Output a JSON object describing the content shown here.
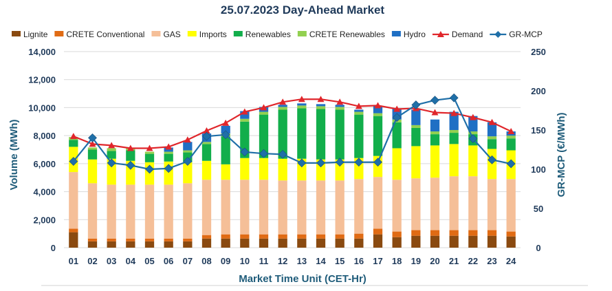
{
  "chart_data": {
    "type": "bar",
    "title": "25.07.2023  Day-Ahead Market",
    "xlabel": "Market Time Unit (CET-Hr)",
    "ylabel": "Volume (MWh)",
    "y2label": "GR-MCP (€/MWh)",
    "ylim": [
      0,
      14000
    ],
    "y2lim": [
      0,
      250
    ],
    "y_ticks": [
      "0",
      "2,000",
      "4,000",
      "6,000",
      "8,000",
      "10,000",
      "12,000",
      "14,000"
    ],
    "y2_ticks": [
      "0",
      "50",
      "100",
      "150",
      "200",
      "250"
    ],
    "categories": [
      "01",
      "02",
      "03",
      "04",
      "05",
      "06",
      "07",
      "08",
      "09",
      "10",
      "11",
      "12",
      "13",
      "14",
      "15",
      "16",
      "17",
      "18",
      "19",
      "20",
      "21",
      "22",
      "23",
      "24"
    ],
    "stacked_series": [
      {
        "name": "Lignite",
        "color": "#8a4a10",
        "values": [
          1100,
          450,
          450,
          450,
          450,
          450,
          450,
          650,
          650,
          650,
          650,
          650,
          650,
          650,
          650,
          650,
          950,
          750,
          850,
          850,
          850,
          850,
          850,
          800
        ]
      },
      {
        "name": "CRETE Conventional",
        "color": "#e06b14",
        "values": [
          250,
          200,
          200,
          200,
          200,
          200,
          200,
          250,
          300,
          300,
          300,
          300,
          300,
          300,
          300,
          350,
          400,
          400,
          400,
          400,
          400,
          400,
          400,
          350
        ]
      },
      {
        "name": "GAS",
        "color": "#f5bf98",
        "values": [
          4050,
          3950,
          3850,
          3850,
          3850,
          3850,
          3950,
          3950,
          3900,
          3900,
          3900,
          3850,
          3850,
          3850,
          3850,
          3900,
          3700,
          3700,
          3700,
          3750,
          3850,
          3850,
          3650,
          3750
        ]
      },
      {
        "name": "Imports",
        "color": "#ffff00",
        "values": [
          1800,
          1700,
          1850,
          1700,
          1600,
          1650,
          1500,
          1350,
          1100,
          1550,
          1550,
          1550,
          1550,
          1500,
          1500,
          1500,
          1500,
          2250,
          2300,
          2300,
          2300,
          2200,
          2150,
          2050
        ]
      },
      {
        "name": "Renewables",
        "color": "#12ae4b",
        "values": [
          500,
          700,
          550,
          750,
          600,
          550,
          700,
          1200,
          2000,
          2600,
          3100,
          3500,
          3600,
          3600,
          3550,
          3100,
          2850,
          1850,
          1300,
          800,
          800,
          800,
          700,
          850
        ]
      },
      {
        "name": "CRETE Renewables",
        "color": "#92d050",
        "values": [
          200,
          150,
          200,
          150,
          150,
          150,
          150,
          150,
          200,
          200,
          200,
          200,
          200,
          200,
          200,
          200,
          200,
          200,
          200,
          200,
          200,
          200,
          200,
          200
        ]
      },
      {
        "name": "Hydro",
        "color": "#1f6fc4",
        "values": [
          0,
          0,
          0,
          0,
          0,
          300,
          600,
          600,
          550,
          550,
          350,
          150,
          150,
          150,
          150,
          150,
          500,
          800,
          1100,
          850,
          1300,
          1100,
          1000,
          300
        ]
      }
    ],
    "line_series": [
      {
        "name": "Demand",
        "axis": "primary",
        "color": "#e0262b",
        "marker": "triangle",
        "values": [
          7950,
          7400,
          7300,
          7100,
          7100,
          7200,
          7700,
          8350,
          8900,
          9700,
          10000,
          10400,
          10600,
          10600,
          10400,
          10100,
          10150,
          9900,
          9950,
          9650,
          9600,
          9300,
          8950,
          8300
        ]
      },
      {
        "name": "GR-MCP",
        "axis": "secondary",
        "color": "#1f6fa8",
        "marker": "diamond",
        "values": [
          110,
          140,
          108,
          105,
          100,
          101,
          110,
          142,
          144,
          122,
          120,
          119,
          108,
          108,
          109,
          109,
          109,
          166,
          182,
          188,
          191,
          139,
          112,
          107
        ]
      }
    ],
    "grid": true,
    "legend_position": "top"
  }
}
